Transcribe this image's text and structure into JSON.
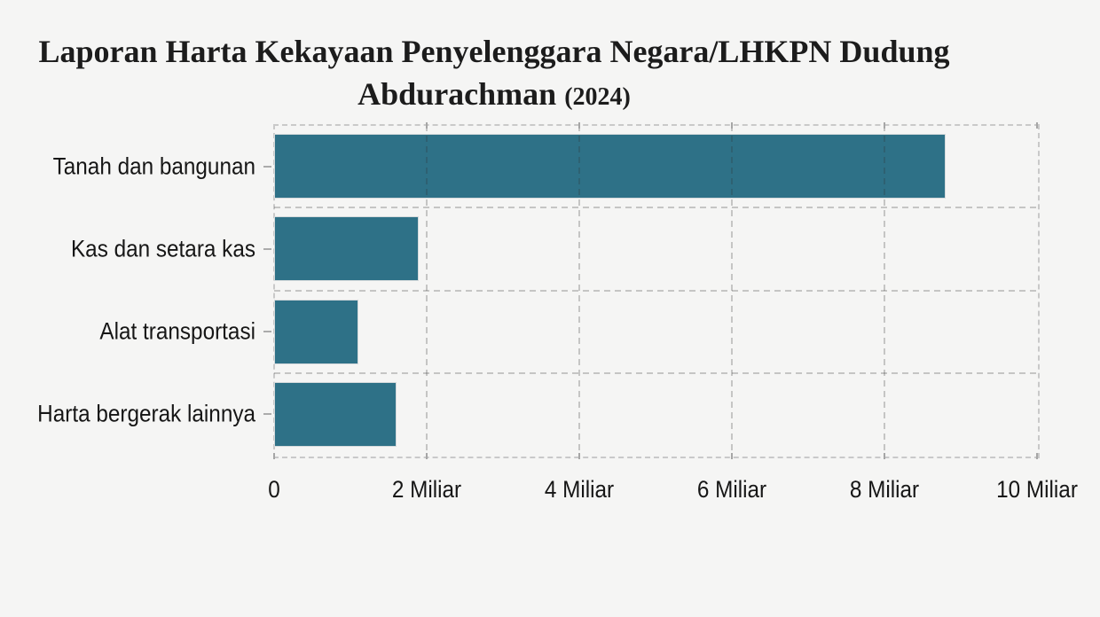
{
  "page": {
    "background_color": "#f5f5f4",
    "text_color": "#161616"
  },
  "chart_data": {
    "type": "bar",
    "orientation": "horizontal",
    "title": "Laporan Harta Kekayaan Penyelenggara Negara/LHKPN Dudung Abdurachman (2024)",
    "title_line1": "Laporan Harta Kekayaan Penyelenggara Negara/LHKPN Dudung",
    "title_line2_name": "Abdurachman ",
    "title_line2_year": "(2024)",
    "categories": [
      "Tanah dan bangunan",
      "Kas dan setara kas",
      "Alat transportasi",
      "Harta bergerak lainnya"
    ],
    "values": [
      8.8,
      1.9,
      1.1,
      1.6
    ],
    "unit": "Miliar",
    "xlabel": "",
    "ylabel": "",
    "xlim": [
      0,
      10
    ],
    "x_tick_values": [
      0,
      2,
      4,
      6,
      8,
      10
    ],
    "x_tick_labels": [
      "0",
      "2 Miliar",
      "4 Miliar",
      "6 Miliar",
      "8 Miliar",
      "10 Miliar"
    ],
    "grid": "dashed",
    "grid_color": "#c9c9c9",
    "legend": "none",
    "bar_color": "#2e7187",
    "bar_edge_color": "#d5dadc"
  }
}
